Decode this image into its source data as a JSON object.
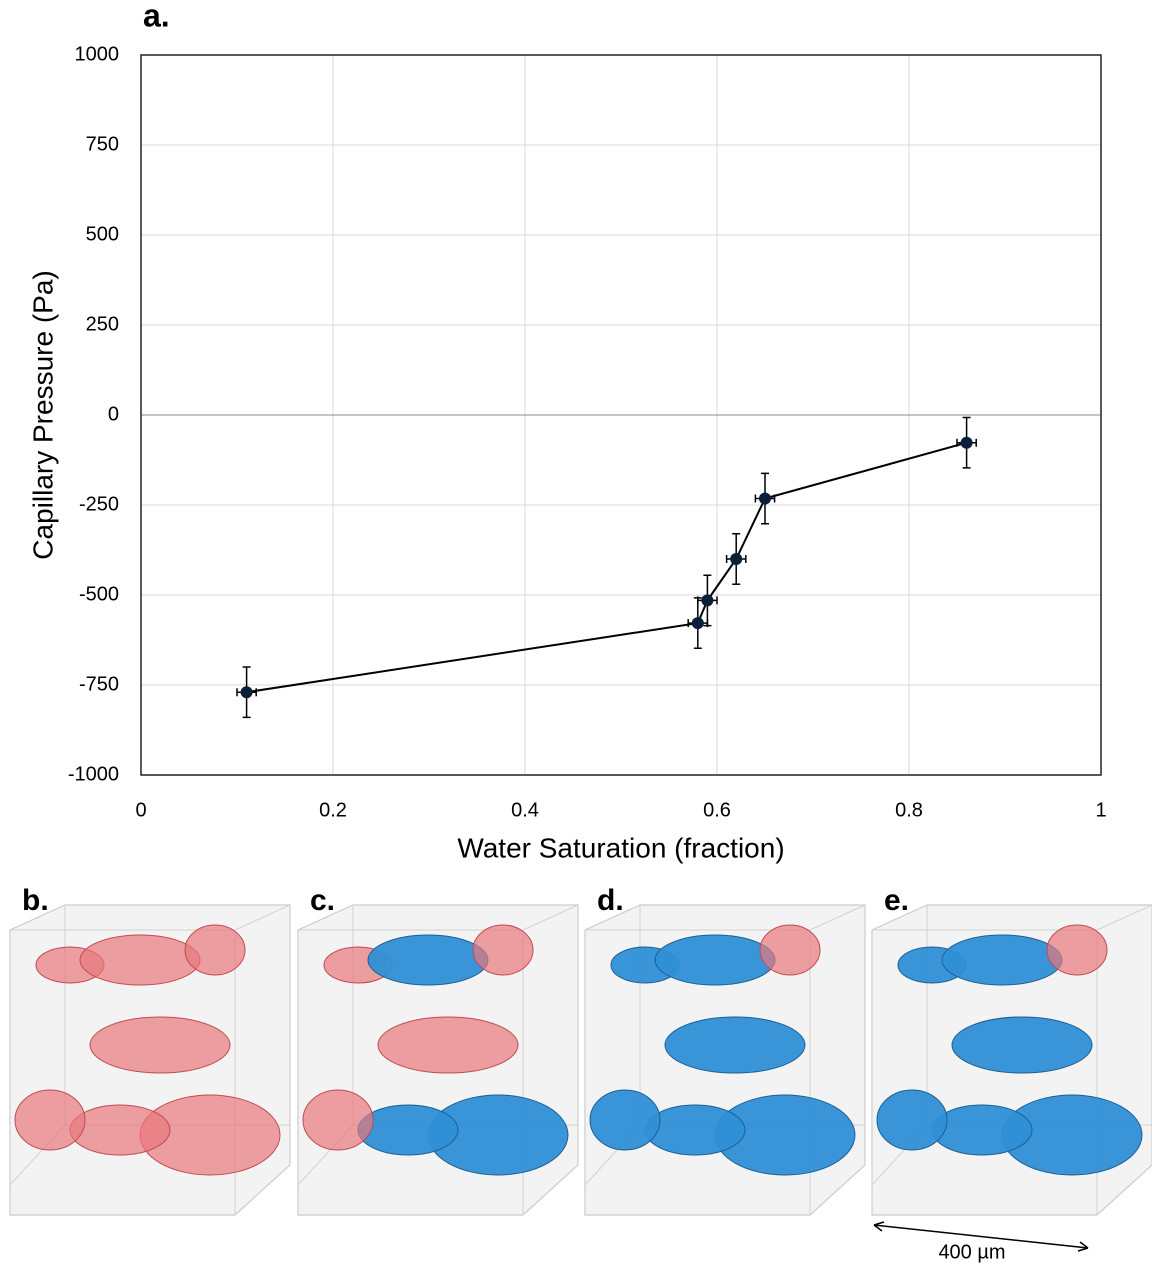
{
  "chart_data": {
    "type": "line",
    "title": "a.",
    "x_label": "Water Saturation (fraction)",
    "y_label": "Capillary Pressure (Pa)",
    "x": [
      0.11,
      0.58,
      0.59,
      0.62,
      0.65,
      0.86
    ],
    "values": [
      -770,
      -578,
      -515,
      -400,
      -232,
      -77
    ],
    "x_errors": [
      0.01,
      0.01,
      0.01,
      0.01,
      0.01,
      0.01
    ],
    "y_errors": [
      70,
      70,
      70,
      70,
      70,
      70
    ],
    "color": "#0b1f3a",
    "xlim": [
      0,
      1
    ],
    "xticks": [
      0,
      0.2,
      0.4,
      0.6,
      0.8,
      1
    ],
    "ylim": [
      -1000,
      1000
    ],
    "yticks": [
      -1000,
      -750,
      -500,
      -250,
      0,
      250,
      500,
      750,
      1000
    ],
    "grid": true
  },
  "panels": [
    {
      "label": "b."
    },
    {
      "label": "c."
    },
    {
      "label": "d."
    },
    {
      "label": "e."
    }
  ],
  "scale_bar": "400 µm"
}
